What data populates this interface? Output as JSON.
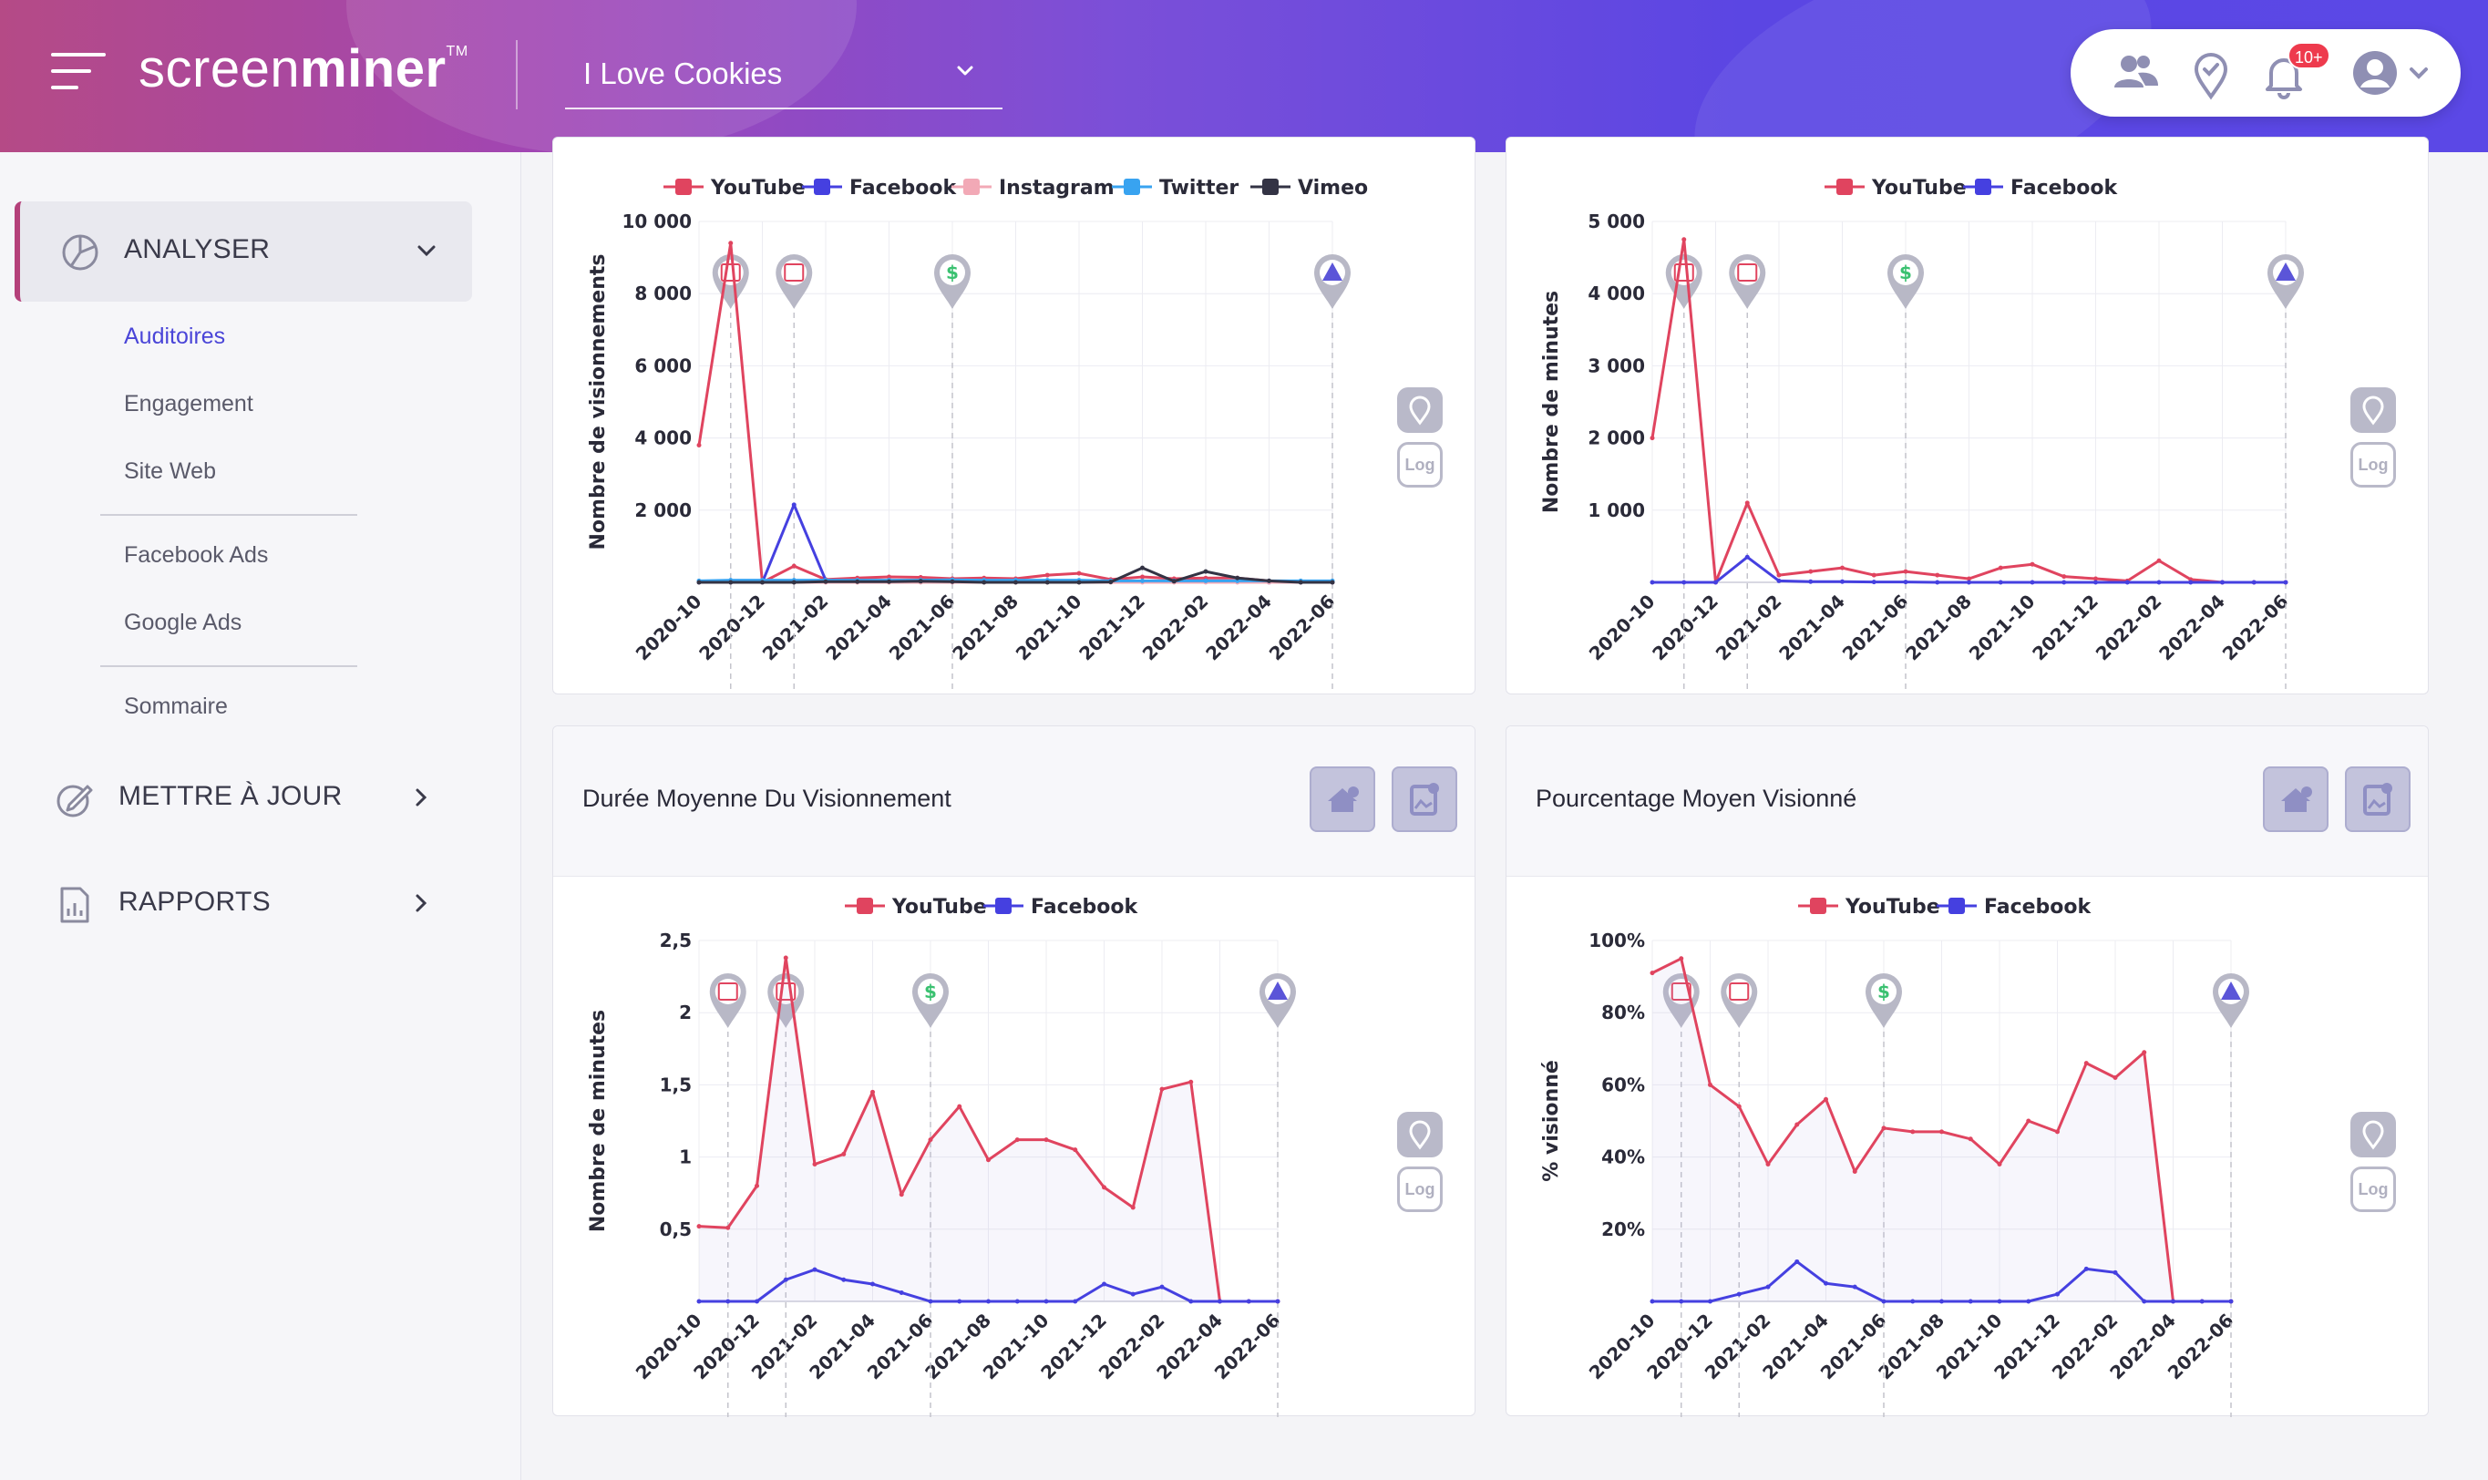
{
  "header": {
    "logo_light": "screen",
    "logo_bold": "miner",
    "logo_tm": "TM",
    "account": "I Love Cookies",
    "notif_count": "10+",
    "gradient": [
      "#b54a86",
      "#5b48e6"
    ]
  },
  "sidebar": {
    "sections": [
      {
        "label": "ANALYSER",
        "icon": "pie-chart-icon",
        "expanded": true
      },
      {
        "label": "METTRE À JOUR",
        "icon": "edit-icon",
        "expanded": false
      },
      {
        "label": "RAPPORTS",
        "icon": "report-icon",
        "expanded": false
      }
    ],
    "items": [
      "Auditoires",
      "Engagement",
      "Site Web",
      "Facebook Ads",
      "Google Ads",
      "Sommaire"
    ],
    "active_item": "Auditoires",
    "accent": "#b4407a"
  },
  "colors": {
    "YouTube": "#e0445f",
    "Facebook": "#4540e0",
    "Instagram": "#f2a9b6",
    "Twitter": "#38a3f0",
    "Vimeo": "#333344"
  },
  "tool_labels": {
    "log": "Log"
  },
  "charts": [
    {
      "title": "",
      "ylabel": "Nombre de visionnements",
      "yticks": [
        "2 000",
        "4 000",
        "6 000",
        "8 000",
        "10 000"
      ],
      "xticks": [
        "2020-10",
        "2020-12",
        "2021-02",
        "2021-04",
        "2021-06",
        "2021-08",
        "2021-10",
        "2021-12",
        "2022-02",
        "2022-04",
        "2022-06"
      ]
    },
    {
      "title": "",
      "ylabel": "Nombre de minutes",
      "yticks": [
        "1 000",
        "2 000",
        "3 000",
        "4 000",
        "5 000"
      ],
      "xticks": [
        "2020-10",
        "2020-12",
        "2021-02",
        "2021-04",
        "2021-06",
        "2021-08",
        "2021-10",
        "2021-12",
        "2022-02",
        "2022-04",
        "2022-06"
      ]
    },
    {
      "title": "Durée Moyenne Du Visionnement",
      "ylabel": "Nombre de minutes",
      "yticks": [
        "0,5",
        "1",
        "1,5",
        "2",
        "2,5"
      ],
      "xticks": [
        "2020-10",
        "2020-12",
        "2021-02",
        "2021-04",
        "2021-06",
        "2021-08",
        "2021-10",
        "2021-12",
        "2022-02",
        "2022-04",
        "2022-06"
      ]
    },
    {
      "title": "Pourcentage Moyen Visionné",
      "ylabel": "% visionné",
      "yticks": [
        "20%",
        "40%",
        "60%",
        "80%",
        "100%"
      ],
      "xticks": [
        "2020-10",
        "2020-12",
        "2021-02",
        "2021-04",
        "2021-06",
        "2021-08",
        "2021-10",
        "2021-12",
        "2022-02",
        "2022-04",
        "2022-06"
      ]
    }
  ],
  "chart_data": [
    {
      "type": "line",
      "title": "",
      "xlabel": "",
      "ylabel": "Nombre de visionnements",
      "x": [
        "2020-10",
        "2020-11",
        "2020-12",
        "2021-01",
        "2021-02",
        "2021-03",
        "2021-04",
        "2021-05",
        "2021-06",
        "2021-07",
        "2021-08",
        "2021-09",
        "2021-10",
        "2021-11",
        "2021-12",
        "2022-01",
        "2022-02",
        "2022-03",
        "2022-04",
        "2022-05",
        "2022-06"
      ],
      "ylim": [
        0,
        10000
      ],
      "legend": "top",
      "grid": true,
      "series": [
        {
          "name": "YouTube",
          "values": [
            3800,
            9400,
            0,
            450,
            80,
            120,
            150,
            140,
            100,
            120,
            100,
            200,
            250,
            80,
            150,
            100,
            120,
            120,
            40,
            30,
            10
          ]
        },
        {
          "name": "Facebook",
          "values": [
            0,
            0,
            0,
            2150,
            60,
            50,
            40,
            30,
            20,
            20,
            10,
            20,
            20,
            40,
            30,
            20,
            40,
            10,
            0,
            0,
            0
          ]
        },
        {
          "name": "Instagram",
          "values": [
            0,
            0,
            0,
            0,
            0,
            0,
            0,
            0,
            0,
            0,
            0,
            0,
            0,
            0,
            0,
            0,
            0,
            0,
            0,
            0,
            0
          ]
        },
        {
          "name": "Twitter",
          "values": [
            40,
            60,
            60,
            60,
            60,
            60,
            60,
            60,
            70,
            60,
            60,
            60,
            60,
            40,
            40,
            40,
            40,
            40,
            40,
            40,
            40
          ]
        },
        {
          "name": "Vimeo",
          "values": [
            0,
            0,
            0,
            0,
            20,
            20,
            20,
            30,
            20,
            0,
            0,
            0,
            0,
            10,
            400,
            30,
            300,
            120,
            40,
            0,
            0
          ]
        }
      ],
      "annotations": [
        {
          "x": "2020-11",
          "icon": "calendar-icon"
        },
        {
          "x": "2021-01",
          "icon": "calendar-icon"
        },
        {
          "x": "2021-06",
          "icon": "dollar-icon"
        },
        {
          "x": "2022-06",
          "icon": "warning-icon"
        }
      ]
    },
    {
      "type": "line",
      "title": "",
      "xlabel": "",
      "ylabel": "Nombre de minutes",
      "x": [
        "2020-10",
        "2020-11",
        "2020-12",
        "2021-01",
        "2021-02",
        "2021-03",
        "2021-04",
        "2021-05",
        "2021-06",
        "2021-07",
        "2021-08",
        "2021-09",
        "2021-10",
        "2021-11",
        "2021-12",
        "2022-01",
        "2022-02",
        "2022-03",
        "2022-04",
        "2022-05",
        "2022-06"
      ],
      "ylim": [
        0,
        5000
      ],
      "legend": "top",
      "grid": true,
      "series": [
        {
          "name": "YouTube",
          "values": [
            2000,
            4750,
            0,
            1100,
            100,
            150,
            200,
            100,
            150,
            100,
            50,
            200,
            250,
            80,
            50,
            20,
            300,
            40,
            0,
            0,
            0
          ]
        },
        {
          "name": "Facebook",
          "values": [
            0,
            0,
            0,
            350,
            20,
            10,
            10,
            5,
            5,
            0,
            0,
            0,
            0,
            0,
            0,
            0,
            0,
            0,
            0,
            0,
            0
          ]
        }
      ],
      "annotations": [
        {
          "x": "2020-11",
          "icon": "calendar-icon"
        },
        {
          "x": "2021-01",
          "icon": "calendar-icon"
        },
        {
          "x": "2021-06",
          "icon": "dollar-icon"
        },
        {
          "x": "2022-06",
          "icon": "warning-icon"
        }
      ]
    },
    {
      "type": "line",
      "title": "Durée Moyenne Du Visionnement",
      "xlabel": "",
      "ylabel": "Nombre de minutes",
      "x": [
        "2020-10",
        "2020-11",
        "2020-12",
        "2021-01",
        "2021-02",
        "2021-03",
        "2021-04",
        "2021-05",
        "2021-06",
        "2021-07",
        "2021-08",
        "2021-09",
        "2021-10",
        "2021-11",
        "2021-12",
        "2022-01",
        "2022-02",
        "2022-03",
        "2022-04",
        "2022-05",
        "2022-06"
      ],
      "ylim": [
        0,
        2.5
      ],
      "legend": "top",
      "grid": true,
      "series": [
        {
          "name": "YouTube",
          "values": [
            0.52,
            0.51,
            0.8,
            2.38,
            0.95,
            1.02,
            1.45,
            0.74,
            1.12,
            1.35,
            0.98,
            1.12,
            1.12,
            1.05,
            0.79,
            0.65,
            1.47,
            1.52,
            0,
            0,
            0
          ]
        },
        {
          "name": "Facebook",
          "values": [
            0,
            0,
            0,
            0.15,
            0.22,
            0.15,
            0.12,
            0.06,
            0,
            0,
            0,
            0,
            0,
            0,
            0.12,
            0.05,
            0.1,
            0,
            0,
            0,
            0
          ]
        }
      ],
      "annotations": [
        {
          "x": "2020-11",
          "icon": "calendar-icon"
        },
        {
          "x": "2021-01",
          "icon": "calendar-icon"
        },
        {
          "x": "2021-06",
          "icon": "dollar-icon"
        },
        {
          "x": "2022-06",
          "icon": "warning-icon"
        }
      ]
    },
    {
      "type": "line",
      "title": "Pourcentage Moyen Visionné",
      "xlabel": "",
      "ylabel": "% visionné",
      "x": [
        "2020-10",
        "2020-11",
        "2020-12",
        "2021-01",
        "2021-02",
        "2021-03",
        "2021-04",
        "2021-05",
        "2021-06",
        "2021-07",
        "2021-08",
        "2021-09",
        "2021-10",
        "2021-11",
        "2021-12",
        "2022-01",
        "2022-02",
        "2022-03",
        "2022-04",
        "2022-05",
        "2022-06"
      ],
      "ylim": [
        0,
        100
      ],
      "legend": "top",
      "grid": true,
      "series": [
        {
          "name": "YouTube",
          "values": [
            91,
            95,
            60,
            54,
            38,
            49,
            56,
            36,
            48,
            47,
            47,
            45,
            38,
            50,
            47,
            66,
            62,
            69,
            0,
            0,
            0
          ]
        },
        {
          "name": "Facebook",
          "values": [
            0,
            0,
            0,
            2,
            4,
            11,
            5,
            4,
            0,
            0,
            0,
            0,
            0,
            0,
            2,
            9,
            8,
            0,
            0,
            0,
            0
          ]
        }
      ],
      "annotations": [
        {
          "x": "2020-11",
          "icon": "calendar-icon"
        },
        {
          "x": "2021-01",
          "icon": "calendar-icon"
        },
        {
          "x": "2021-06",
          "icon": "dollar-icon"
        },
        {
          "x": "2022-06",
          "icon": "warning-icon"
        }
      ]
    }
  ]
}
